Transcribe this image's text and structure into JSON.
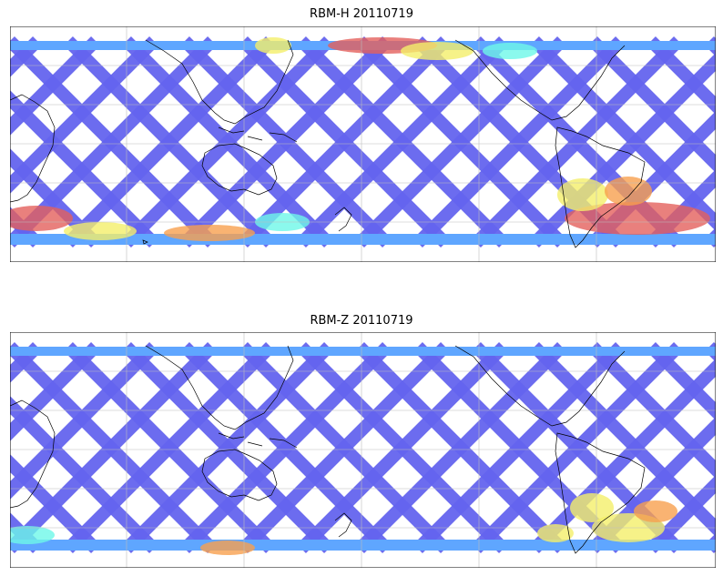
{
  "panels": [
    {
      "title": "RBM-H 20110719"
    },
    {
      "title": "RBM-Z 20110719"
    }
  ],
  "map": {
    "projection": "plate-carree",
    "grid": true,
    "coastlines": true,
    "colormap": "jet",
    "data_style": "satellite swath crossings (descending/ascending tracks)"
  },
  "colors": {
    "low": "#6464ee",
    "mid_low": "#5fa6ff",
    "mid": "#6ef7e8",
    "mid_high": "#f4ef6a",
    "high": "#f7a04f",
    "max": "#e3605d"
  }
}
